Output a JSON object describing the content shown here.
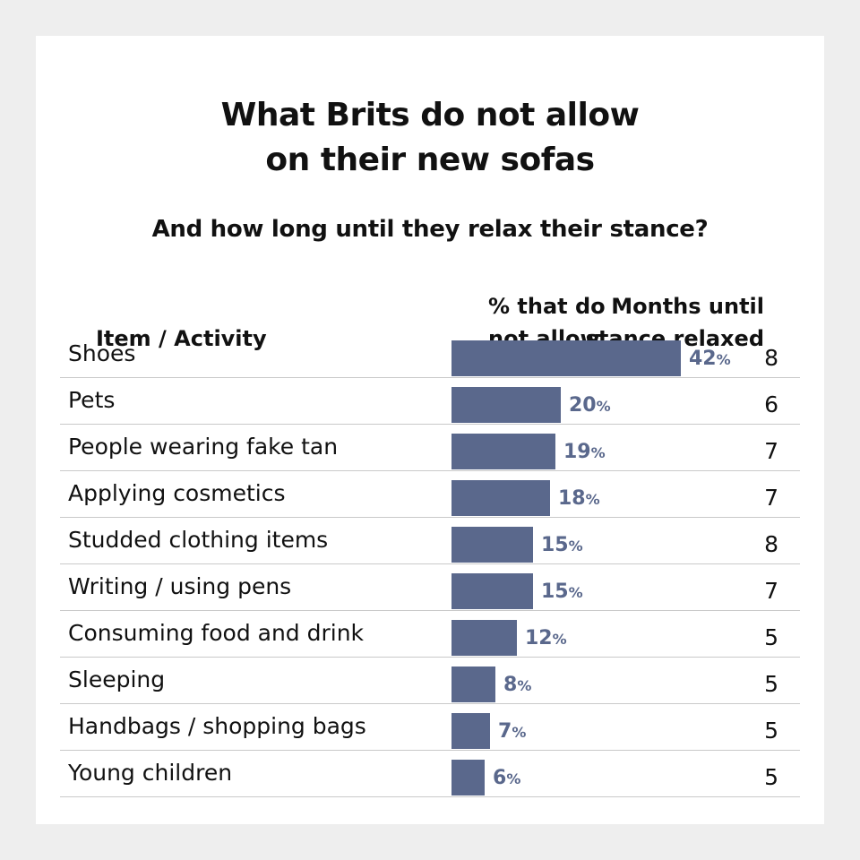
{
  "chart_data": {
    "type": "bar",
    "title": "What Brits do not allow on their new sofas",
    "title_lines": [
      "What Brits do not allow",
      "on their new sofas"
    ],
    "subtitle": "And how long until they relax their stance?",
    "columns": {
      "item": "Item / Activity",
      "percent": [
        "% that do",
        "not allow"
      ],
      "months": [
        "Months until",
        "stance relaxed"
      ]
    },
    "categories": [
      "Shoes",
      "Pets",
      "People wearing fake tan",
      "Applying cosmetics",
      "Studded clothing items",
      "Writing / using pens",
      "Consuming food and drink",
      "Sleeping",
      "Handbags / shopping bags",
      "Young children"
    ],
    "series": [
      {
        "values": [
          42,
          20,
          19,
          18,
          15,
          15,
          12,
          8,
          7,
          6
        ],
        "labels": [
          "42%",
          "20%",
          "19%",
          "18%",
          "15%",
          "15%",
          "12%",
          "8%",
          "7%",
          "6%"
        ]
      }
    ],
    "months_until_relaxed": [
      8,
      6,
      7,
      7,
      8,
      7,
      5,
      5,
      5,
      5
    ],
    "orientation": "horizontal",
    "bar_color": "#5a688c",
    "xlim": [
      0,
      42
    ],
    "grid": false,
    "legend": "none"
  },
  "colors": {
    "background": "#eeeeee",
    "card": "#ffffff",
    "bar": "#5a688c",
    "divider": "#c9c9c9",
    "text": "#111111"
  }
}
